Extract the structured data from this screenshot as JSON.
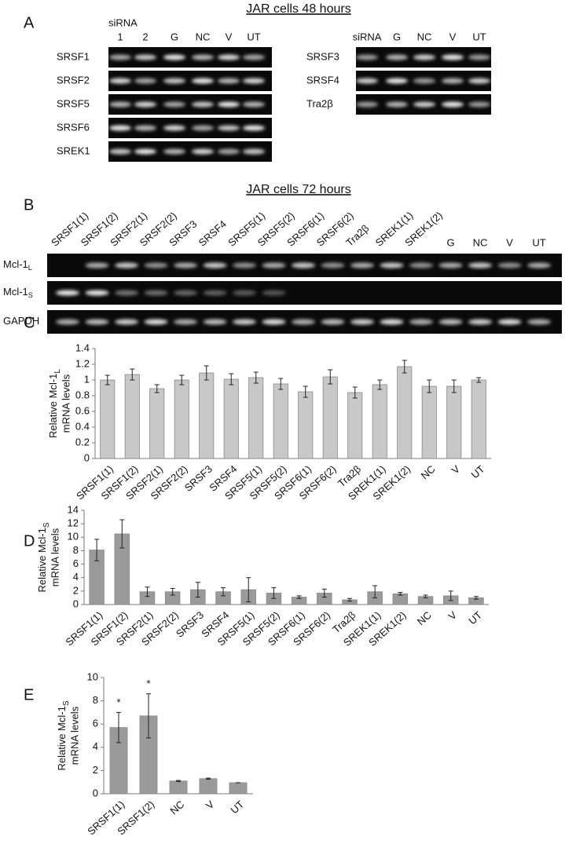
{
  "panel_a": {
    "label": "A",
    "title": "JAR cells 48 hours",
    "gel_left": {
      "header_top": "siRNA",
      "lanes": [
        "1",
        "2",
        "G",
        "NC",
        "V",
        "UT"
      ],
      "rows": [
        "SRSF1",
        "SRSF2",
        "SRSF5",
        "SRSF6",
        "SREK1"
      ]
    },
    "gel_right": {
      "lanes": [
        "siRNA",
        "G",
        "NC",
        "V",
        "UT"
      ],
      "rows": [
        "SRSF3",
        "SRSF4",
        "Tra2β"
      ]
    }
  },
  "panel_b": {
    "label": "B",
    "title": "JAR cells 72 hours",
    "lanes": [
      "SRSF1(1)",
      "SRSF1(2)",
      "SRSF2(1)",
      "SRSF2(2)",
      "SRSF3",
      "SRSF4",
      "SRSF5(1)",
      "SRSF5(2)",
      "SRSF6(1)",
      "SRSF6(2)",
      "Tra2β",
      "SREK1(1)",
      "SREK1(2)",
      "G",
      "NC",
      "V",
      "UT"
    ],
    "rows": [
      {
        "name": "Mcl-1",
        "subscript": "L"
      },
      {
        "name": "Mcl-1",
        "subscript": "S"
      },
      {
        "name": "GAPDH"
      }
    ]
  },
  "chart_data": [
    {
      "type": "bar",
      "label": "C",
      "y_label": {
        "line1": "Relative Mcl-1",
        "subscript": "L",
        "line2": "mRNA levels"
      },
      "categories": [
        "SRSF1(1)",
        "SRSF1(2)",
        "SRSF2(1)",
        "SRSF2(2)",
        "SRSF3",
        "SRSF4",
        "SRSF5(1)",
        "SRSF5(2)",
        "SRSF6(1)",
        "SRSF6(2)",
        "Tra2β",
        "SREK1(1)",
        "SREK1(2)",
        "NC",
        "V",
        "UT"
      ],
      "values": [
        1.0,
        1.07,
        0.89,
        1.0,
        1.09,
        1.01,
        1.03,
        0.95,
        0.85,
        1.04,
        0.84,
        0.94,
        1.17,
        0.92,
        0.92,
        1.0
      ],
      "errors": [
        0.06,
        0.07,
        0.05,
        0.06,
        0.09,
        0.07,
        0.07,
        0.07,
        0.07,
        0.09,
        0.07,
        0.06,
        0.08,
        0.08,
        0.08,
        0.03
      ],
      "color": "#c8c8c8",
      "ylim": [
        0,
        1.4
      ],
      "yticks": [
        0,
        0.2,
        0.4,
        0.6,
        0.8,
        1,
        1.2,
        1.4
      ]
    },
    {
      "type": "bar",
      "label": "D",
      "y_label": {
        "line1": "Relative Mcl-1",
        "subscript": "S",
        "line2": "mRNA levels"
      },
      "categories": [
        "SRSF1(1)",
        "SRSF1(2)",
        "SRSF2(1)",
        "SRSF2(2)",
        "SRSF3",
        "SRSF4",
        "SRSF5(1)",
        "SRSF5(2)",
        "SRSF6(1)",
        "SRSF6(2)",
        "Tra2β",
        "SREK1(1)",
        "SREK1(2)",
        "NC",
        "V",
        "UT"
      ],
      "values": [
        8.1,
        10.5,
        1.9,
        1.9,
        2.2,
        1.9,
        2.2,
        1.7,
        1.1,
        1.7,
        0.7,
        1.9,
        1.6,
        1.2,
        1.3,
        1.0
      ],
      "errors": [
        1.6,
        2.1,
        0.7,
        0.5,
        1.1,
        0.6,
        1.8,
        0.8,
        0.2,
        0.6,
        0.2,
        0.9,
        0.2,
        0.2,
        0.7,
        0.2
      ],
      "color": "#9a9a9a",
      "ylim": [
        0,
        14
      ],
      "yticks": [
        0,
        2,
        4,
        6,
        8,
        10,
        12,
        14
      ]
    },
    {
      "type": "bar",
      "label": "E",
      "y_label": {
        "line1": "Relative Mcl-1",
        "subscript": "S",
        "line2": "mRNA levels"
      },
      "categories": [
        "SRSF1(1)",
        "SRSF1(2)",
        "NC",
        "V",
        "UT"
      ],
      "values": [
        5.7,
        6.7,
        1.1,
        1.3,
        0.95
      ],
      "errors": [
        1.3,
        1.9,
        0.05,
        0.05,
        0
      ],
      "significance": [
        "*",
        "*",
        null,
        null,
        null
      ],
      "color": "#9a9a9a",
      "ylim": [
        0,
        10
      ],
      "yticks": [
        0,
        2,
        4,
        6,
        8,
        10
      ]
    }
  ]
}
